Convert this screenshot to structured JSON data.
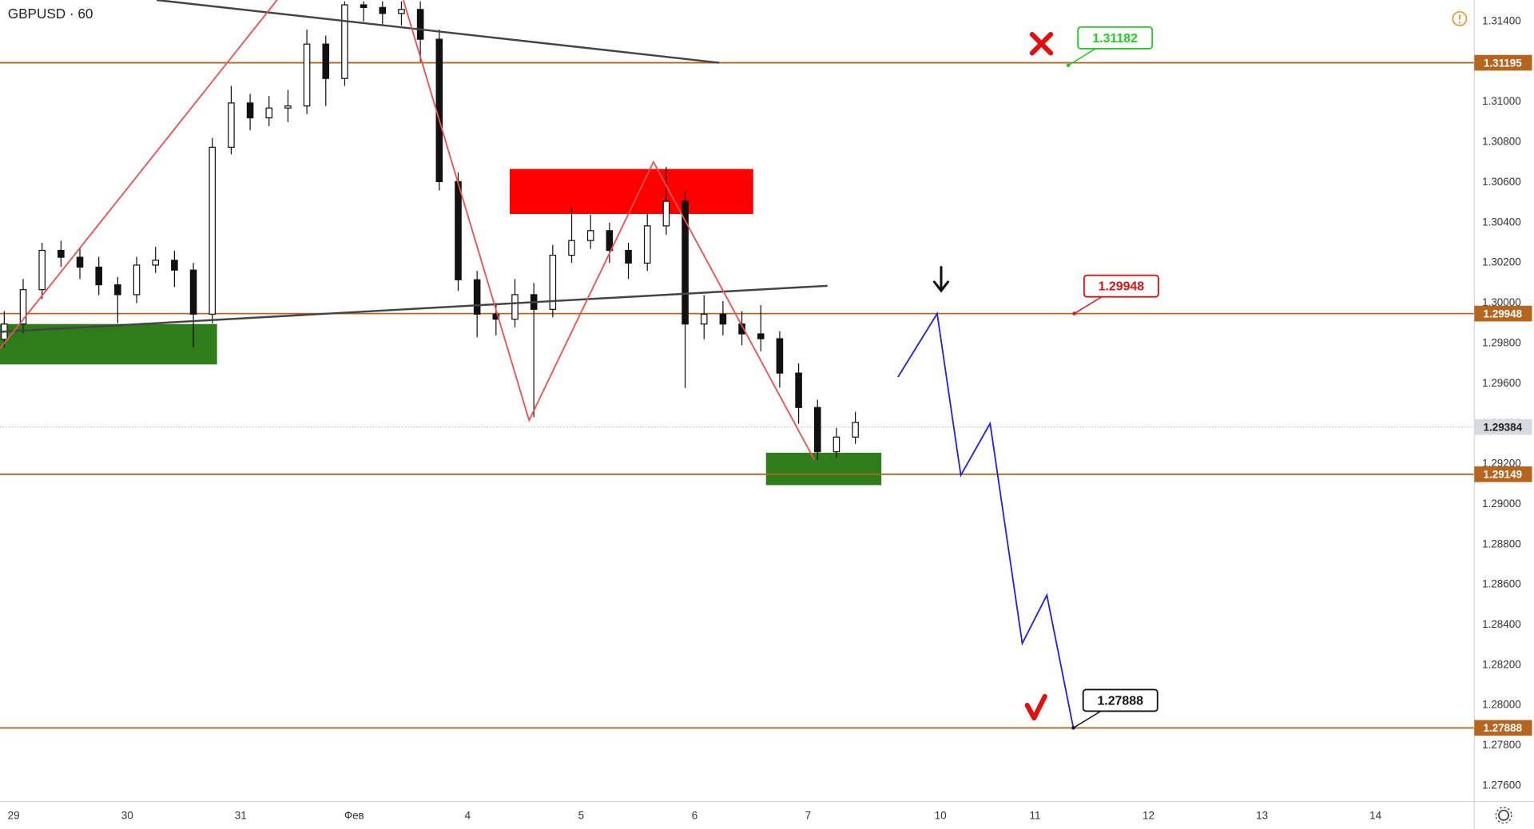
{
  "chart_data": {
    "type": "candlestick",
    "title": "GBPUSD · 60",
    "x": [
      -2,
      2,
      6,
      10,
      14,
      18,
      22,
      26,
      30,
      34,
      38,
      42,
      46,
      50,
      54,
      58,
      62,
      66,
      70,
      74,
      78,
      82,
      86,
      90,
      94,
      98,
      102,
      106,
      110,
      114,
      118,
      122,
      126,
      130,
      134,
      138,
      142,
      146,
      150,
      154,
      158,
      162,
      166,
      170,
      174,
      178
    ],
    "open": [
      1.2982,
      1.29896,
      1.30067,
      1.30262,
      1.30228,
      1.30179,
      1.30091,
      1.30042,
      1.30189,
      1.30213,
      1.30164,
      1.29945,
      1.30775,
      1.30995,
      1.30921,
      1.3097,
      1.3098,
      1.31288,
      1.31117,
      1.31483,
      1.3147,
      1.3144,
      1.3146,
      1.31312,
      1.30604,
      1.30116,
      1.29945,
      1.2992,
      1.30042,
      1.29969,
      1.30238,
      1.30311,
      1.3036,
      1.30262,
      1.30199,
      1.30384,
      1.30506,
      1.29896,
      1.29945,
      1.29896,
      1.29847,
      1.29823,
      1.29652,
      1.29481,
      1.29261,
      1.29334
    ],
    "high": [
      1.2996,
      1.3012,
      1.303,
      1.3031,
      1.3027,
      1.3023,
      1.3013,
      1.3023,
      1.3028,
      1.3026,
      1.302,
      1.3082,
      1.3108,
      1.3104,
      1.3103,
      1.3106,
      1.3136,
      1.3133,
      1.315,
      1.315,
      1.315,
      1.315,
      1.315,
      1.3136,
      1.3065,
      1.3016,
      1.3,
      1.3012,
      1.301,
      1.3029,
      1.3048,
      1.3044,
      1.304,
      1.303,
      1.3045,
      1.30677,
      1.3056,
      1.3004,
      1.3001,
      1.2996,
      1.2999,
      1.2986,
      1.297,
      1.2952,
      1.2938,
      1.2946
    ],
    "low": [
      1.2978,
      1.2985,
      1.3002,
      1.3018,
      1.3012,
      1.3004,
      1.299,
      1.3,
      1.3015,
      1.3008,
      1.2978,
      1.299,
      1.3074,
      1.3086,
      1.3088,
      1.309,
      1.3094,
      1.3098,
      1.3108,
      1.314,
      1.3138,
      1.3138,
      1.312,
      1.3056,
      1.3006,
      1.2983,
      1.2984,
      1.2988,
      1.29432,
      1.2993,
      1.302,
      1.3027,
      1.302,
      1.3012,
      1.3016,
      1.3034,
      1.29578,
      1.2982,
      1.2984,
      1.2979,
      1.2976,
      1.2958,
      1.294,
      1.2922,
      1.2923,
      1.293
    ],
    "close": [
      1.29896,
      1.30067,
      1.30262,
      1.30228,
      1.30179,
      1.30091,
      1.30042,
      1.30189,
      1.30213,
      1.30164,
      1.29945,
      1.30775,
      1.30995,
      1.30921,
      1.3097,
      1.3098,
      1.31288,
      1.31117,
      1.31483,
      1.3147,
      1.3144,
      1.3146,
      1.31312,
      1.30604,
      1.30116,
      1.29945,
      1.2992,
      1.30042,
      1.29969,
      1.30238,
      1.30311,
      1.3036,
      1.30262,
      1.30199,
      1.30384,
      1.30506,
      1.29896,
      1.29945,
      1.29896,
      1.29847,
      1.29823,
      1.29652,
      1.29481,
      1.29261,
      1.29334,
      1.29407
    ],
    "xlim": [
      -2.9,
      308.9
    ],
    "ylim": [
      1.27522,
      1.31507
    ],
    "xticks": [
      {
        "value": 0,
        "label": "29"
      },
      {
        "value": 24,
        "label": "30"
      },
      {
        "value": 48,
        "label": "31"
      },
      {
        "value": 72,
        "label": "Фев"
      },
      {
        "value": 96,
        "label": "4"
      },
      {
        "value": 120,
        "label": "5"
      },
      {
        "value": 144,
        "label": "6"
      },
      {
        "value": 168,
        "label": "7"
      },
      {
        "value": 196,
        "label": "10"
      },
      {
        "value": 216,
        "label": "11"
      },
      {
        "value": 240,
        "label": "12"
      },
      {
        "value": 264,
        "label": "13"
      },
      {
        "value": 288,
        "label": "14"
      }
    ],
    "yticks": [
      {
        "value": 1.276,
        "label": "1.27600"
      },
      {
        "value": 1.278,
        "label": "1.27800"
      },
      {
        "value": 1.28,
        "label": "1.28000"
      },
      {
        "value": 1.282,
        "label": "1.28200"
      },
      {
        "value": 1.284,
        "label": "1.28400"
      },
      {
        "value": 1.286,
        "label": "1.28600"
      },
      {
        "value": 1.288,
        "label": "1.28800"
      },
      {
        "value": 1.29,
        "label": "1.29000"
      },
      {
        "value": 1.292,
        "label": "1.29200"
      },
      {
        "value": 1.294,
        "label": "1.29400"
      },
      {
        "value": 1.296,
        "label": "1.29600"
      },
      {
        "value": 1.298,
        "label": "1.29800"
      },
      {
        "value": 1.3,
        "label": "1.30000"
      },
      {
        "value": 1.302,
        "label": "1.30200"
      },
      {
        "value": 1.304,
        "label": "1.30400"
      },
      {
        "value": 1.306,
        "label": "1.30600"
      },
      {
        "value": 1.308,
        "label": "1.30800"
      },
      {
        "value": 1.31,
        "label": "1.31000"
      },
      {
        "value": 1.312,
        "label": "1.31200"
      },
      {
        "value": 1.314,
        "label": "1.31400"
      }
    ],
    "levels": [
      {
        "value": 1.31195,
        "color": "#b5651d"
      },
      {
        "value": 1.29948,
        "color": "#b5651d"
      },
      {
        "value": 1.29149,
        "color": "#b5651d"
      },
      {
        "value": 1.27888,
        "color": "#b5651d"
      }
    ],
    "current_price": {
      "value": 1.29384,
      "color": "#b2b5be"
    },
    "zones": [
      {
        "x": [
          -2.9,
          43.0
        ],
        "y": [
          1.29695,
          1.29896
        ],
        "color": "#2e7d1a"
      },
      {
        "x": [
          104.9,
          156.4
        ],
        "y": [
          1.30443,
          1.30667
        ],
        "color": "#ff0000"
      },
      {
        "x": [
          159.1,
          183.5
        ],
        "y": [
          1.29095,
          1.29256
        ],
        "color": "#2e7d1a"
      }
    ],
    "lines": [
      {
        "color": "#444444",
        "x": [
          30.2,
          149.2
        ],
        "y": [
          1.31507,
          1.31195
        ]
      },
      {
        "color": "#444444",
        "x": [
          -2.9,
          172.1
        ],
        "y": [
          1.29857,
          1.30086
        ]
      },
      {
        "color": "#f05050",
        "x": [
          -2.9,
          55.7
        ],
        "y": [
          1.29774,
          1.31507
        ]
      },
      {
        "color": "#f05050",
        "x": [
          82.4,
          109.0,
          135.3,
          169.3
        ],
        "y": [
          1.31507,
          1.29417,
          1.30702,
          1.29222
        ]
      },
      {
        "color": "#2222dd",
        "x": [
          187.0,
          195.3,
          200.3,
          206.5,
          213.3,
          218.5,
          224.1
        ],
        "y": [
          1.29632,
          1.29948,
          1.29144,
          1.29402,
          1.28308,
          1.28548,
          1.27888
        ]
      }
    ],
    "callouts": [
      {
        "x": 223.0,
        "value": 1.31182,
        "color": "#22cc22"
      },
      {
        "x": 224.3,
        "value": 1.29948,
        "color": "#e01010"
      },
      {
        "x": 224.1,
        "value": 1.27888,
        "color": "#111111"
      }
    ]
  }
}
